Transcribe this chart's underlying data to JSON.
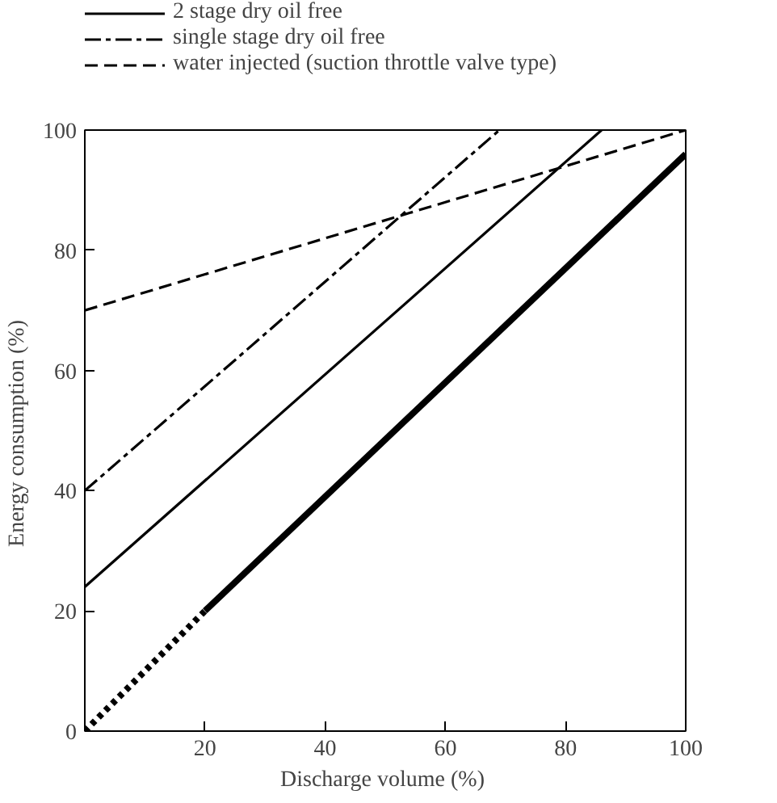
{
  "chart_data": {
    "type": "line",
    "xlabel": "Discharge volume  (%)",
    "ylabel": "Energy consumption  (%)",
    "xlim": [
      0,
      100
    ],
    "ylim": [
      0,
      100
    ],
    "xticks": [
      20,
      40,
      60,
      80,
      100
    ],
    "yticks": [
      0,
      20,
      40,
      60,
      80,
      100
    ],
    "legend": "top left",
    "series": [
      {
        "color": "#000000",
        "x": [
          0,
          20
        ],
        "values": [
          0,
          20
        ],
        "line_style": "dotted"
      },
      {
        "color": "#000000",
        "x": [
          20,
          100
        ],
        "values": [
          20,
          96
        ],
        "line_style": "solid"
      },
      {
        "name": "2 stage dry oil free",
        "color": "#000000",
        "x": [
          0,
          86
        ],
        "values": [
          24,
          100
        ],
        "line_style": "solid"
      },
      {
        "name": "single stage dry oil free",
        "color": "#000000",
        "x": [
          0,
          69
        ],
        "values": [
          40,
          100
        ],
        "line_style": "dashdot"
      },
      {
        "name": "water injected (suction throttle valve type)",
        "color": "#000000",
        "x": [
          0,
          100
        ],
        "values": [
          70,
          100
        ],
        "line_style": "dashed"
      }
    ]
  }
}
